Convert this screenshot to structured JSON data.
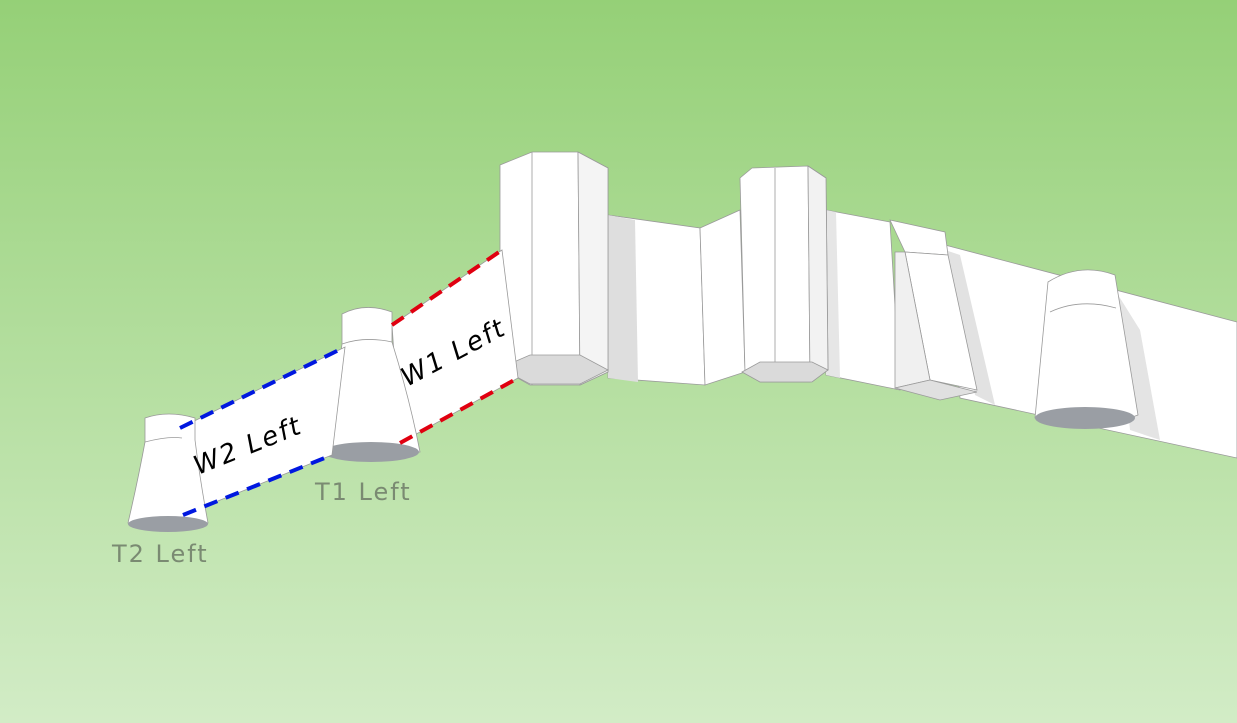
{
  "labels": {
    "w2": "W2 Left",
    "w1": "W1 Left",
    "t1": "T1 Left",
    "t2": "T2 Left"
  },
  "colors": {
    "sky_top": "#95d077",
    "sky_bottom": "#d2ecc6",
    "wall": "#ffffff",
    "shade": "#dcdcdc",
    "base": "#9a9ea4",
    "w2_edge": "#0018e0",
    "w1_edge": "#e00010"
  }
}
